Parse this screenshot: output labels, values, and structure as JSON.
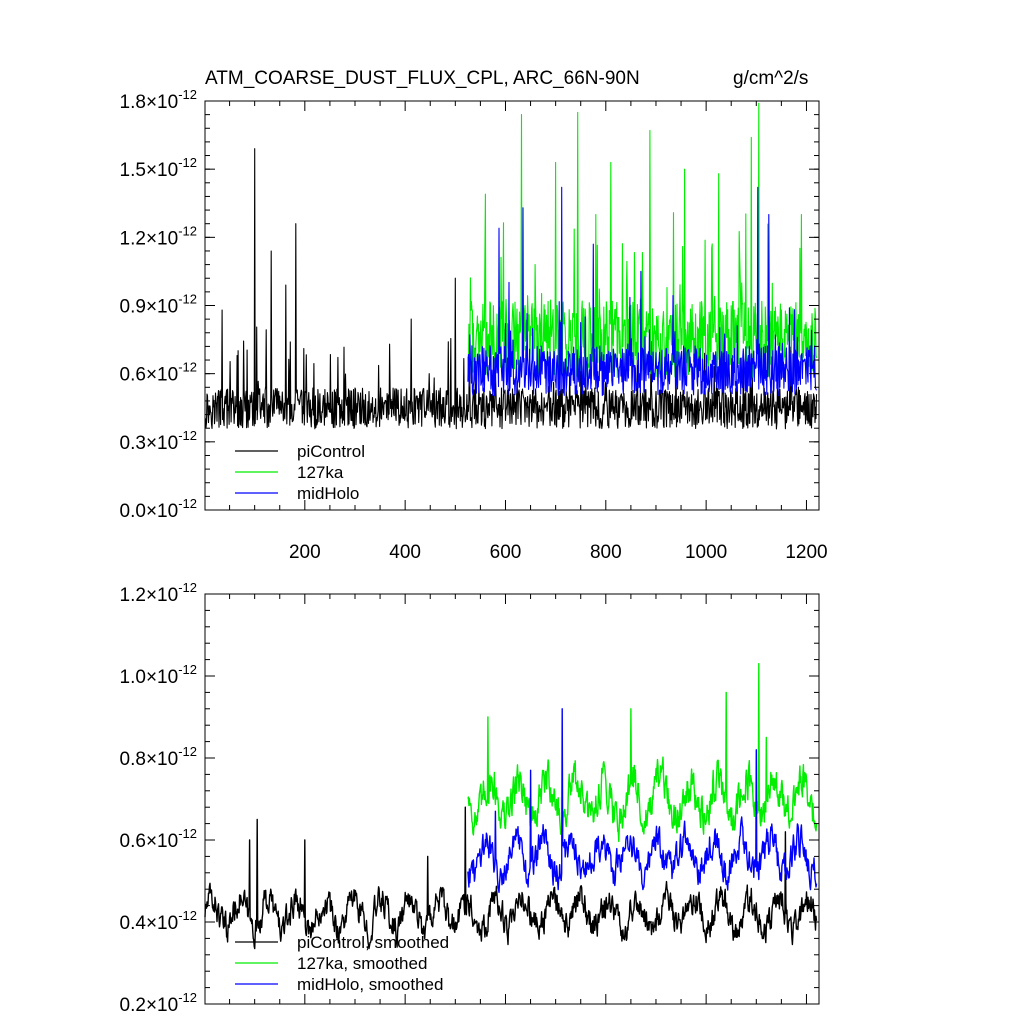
{
  "chart_data": [
    {
      "type": "line",
      "title": "ATM_COARSE_DUST_FLUX_CPL, ARC_66N-90N",
      "units": "g/cm^2/s",
      "xlabel": "",
      "ylabel": "",
      "xlim": [
        1,
        1225
      ],
      "ylim": [
        0.0,
        1.8
      ],
      "y_exponent": "-12",
      "y_ticks": [
        0.0,
        0.3,
        0.6,
        0.9,
        1.2,
        1.5,
        1.8
      ],
      "y_tick_labels": [
        "0.0",
        "0.3",
        "0.6",
        "0.9",
        "1.2",
        "1.5",
        "1.8"
      ],
      "x_ticks": [
        200,
        400,
        600,
        800,
        1000,
        1200
      ],
      "x_tick_labels": [
        "200",
        "400",
        "600",
        "800",
        "1000",
        "1200"
      ],
      "legend": [
        "piControl",
        "127ka",
        "midHolo"
      ],
      "series": [
        {
          "name": "piControl",
          "color": "#000000",
          "x_start": 1,
          "x_end": 1220,
          "mean": 0.42,
          "spread": 0.09,
          "peaks": [
            [
              100,
              1.59
            ],
            [
              133,
              1.14
            ],
            [
              182,
              1.26
            ],
            [
              162,
              0.99
            ],
            [
              412,
              0.84
            ],
            [
              500,
              1.02
            ],
            [
              35,
              0.88
            ]
          ]
        },
        {
          "name": "127ka",
          "color": "#00ee00",
          "x_start": 525,
          "x_end": 1220,
          "mean": 0.7,
          "spread": 0.17,
          "peaks": [
            [
              632,
              1.74
            ],
            [
              744,
              1.75
            ],
            [
              1105,
              1.79
            ],
            [
              1090,
              1.64
            ],
            [
              888,
              1.67
            ],
            [
              1025,
              1.48
            ],
            [
              560,
              1.39
            ],
            [
              700,
              1.53
            ],
            [
              810,
              1.53
            ],
            [
              957,
              1.5
            ],
            [
              780,
              1.3
            ],
            [
              1190,
              1.3
            ]
          ]
        },
        {
          "name": "midHolo",
          "color": "#0000ff",
          "x_start": 525,
          "x_end": 1220,
          "mean": 0.58,
          "spread": 0.11,
          "peaks": [
            [
              712,
              1.42
            ],
            [
              1103,
              1.42
            ],
            [
              635,
              1.33
            ],
            [
              587,
              1.24
            ],
            [
              775,
              1.17
            ],
            [
              1125,
              1.3
            ],
            [
              870,
              1.05
            ]
          ]
        }
      ]
    },
    {
      "type": "line",
      "title": "",
      "xlabel": "",
      "ylabel": "",
      "xlim": [
        1,
        1225
      ],
      "ylim": [
        0.2,
        1.2
      ],
      "y_exponent": "-12",
      "y_ticks": [
        0.2,
        0.4,
        0.6,
        0.8,
        1.0,
        1.2
      ],
      "y_tick_labels": [
        "0.2",
        "0.4",
        "0.6",
        "0.8",
        "1.0",
        "1.2"
      ],
      "legend": [
        "piControl, smoothed",
        "127ka, smoothed",
        "midHolo, smoothed"
      ],
      "series": [
        {
          "name": "piControl, smoothed",
          "color": "#000000",
          "x_start": 1,
          "x_end": 1220,
          "mean": 0.42,
          "spread": 0.045,
          "peaks": [
            [
              105,
              0.65
            ],
            [
              90,
              0.6
            ],
            [
              200,
              0.6
            ],
            [
              520,
              0.68
            ],
            [
              445,
              0.56
            ],
            [
              1158,
              0.62
            ],
            [
              22,
              0.45
            ]
          ]
        },
        {
          "name": "127ka, smoothed",
          "color": "#00ee00",
          "x_start": 525,
          "x_end": 1220,
          "mean": 0.7,
          "spread": 0.06,
          "peaks": [
            [
              1105,
              1.03
            ],
            [
              1040,
              0.96
            ],
            [
              850,
              0.92
            ],
            [
              565,
              0.9
            ],
            [
              1120,
              0.85
            ]
          ]
        },
        {
          "name": "midHolo, smoothed",
          "color": "#0000ff",
          "x_start": 525,
          "x_end": 1220,
          "mean": 0.56,
          "spread": 0.05,
          "peaks": [
            [
              713,
              0.92
            ],
            [
              1100,
              0.82
            ],
            [
              650,
              0.77
            ],
            [
              580,
              0.67
            ]
          ]
        }
      ]
    }
  ]
}
